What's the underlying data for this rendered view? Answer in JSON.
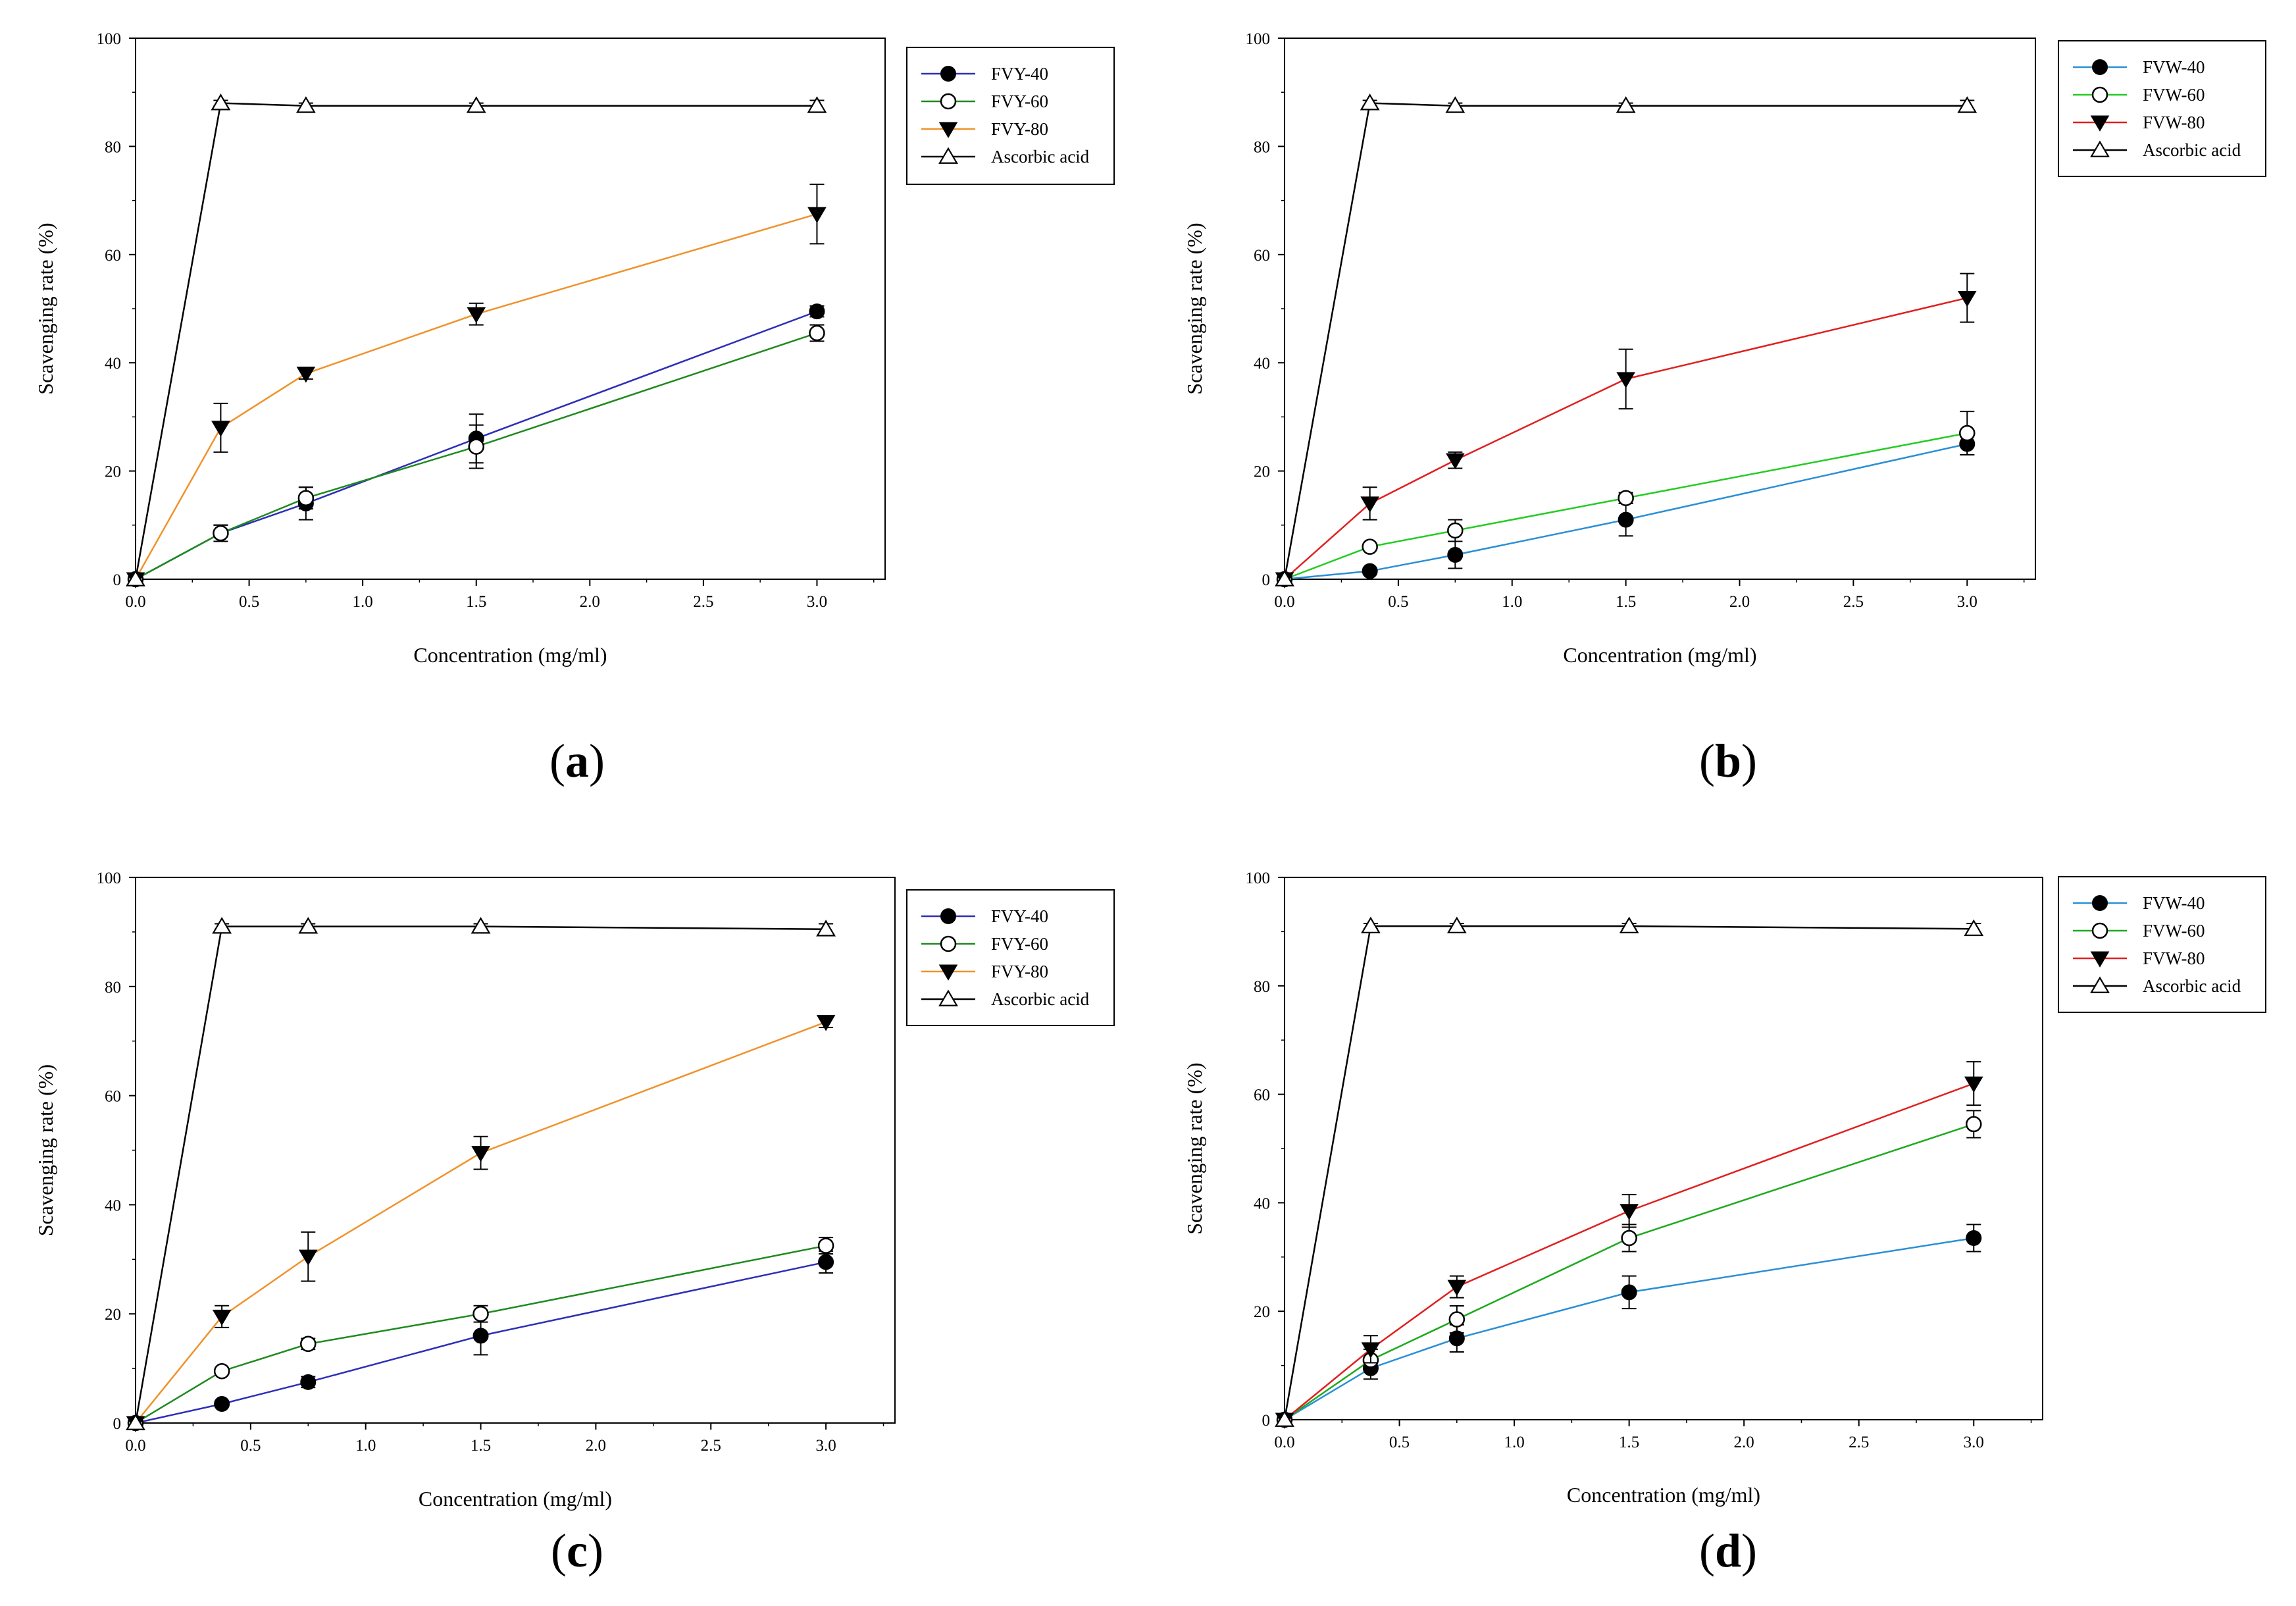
{
  "figure": {
    "panels": [
      "a",
      "b",
      "c",
      "d"
    ]
  },
  "chart_data": [
    {
      "id": "a",
      "panel_label": "(a)",
      "type": "line",
      "xlabel": "Concentration (mg/ml)",
      "ylabel": "Scavenging rate (%)",
      "xlim": [
        0,
        3.3
      ],
      "ylim": [
        0,
        100
      ],
      "xticks": [
        "0.0",
        "0.5",
        "1.0",
        "1.5",
        "2.0",
        "2.5",
        "3.0"
      ],
      "yticks": [
        "0",
        "20",
        "40",
        "60",
        "80",
        "100"
      ],
      "legend_position": "top-right",
      "x": [
        0,
        0.375,
        0.75,
        1.5,
        3.0
      ],
      "series": [
        {
          "name": "FVY-40",
          "color": "#2e2eb8",
          "marker": "filled-circle",
          "values": [
            0,
            8.5,
            14,
            26,
            49.5
          ],
          "errors": [
            0,
            1.5,
            3,
            4.5,
            1
          ]
        },
        {
          "name": "FVY-60",
          "color": "#1e8a1e",
          "marker": "open-circle",
          "values": [
            0,
            8.5,
            15,
            24.5,
            45.5
          ],
          "errors": [
            0,
            1.5,
            2,
            4,
            1.5
          ]
        },
        {
          "name": "FVY-80",
          "color": "#f0922b",
          "marker": "filled-triangle-down",
          "values": [
            0,
            28,
            38,
            49,
            67.5
          ],
          "errors": [
            0,
            4.5,
            1,
            2,
            5.5
          ]
        },
        {
          "name": "Ascorbic acid",
          "color": "#000000",
          "marker": "open-triangle-up",
          "values": [
            0,
            88,
            87.5,
            87.5,
            87.5
          ],
          "errors": [
            0,
            0.5,
            0.5,
            0.5,
            1
          ]
        }
      ]
    },
    {
      "id": "b",
      "panel_label": "(b)",
      "type": "line",
      "xlabel": "Concentration (mg/ml)",
      "ylabel": "Scavenging rate (%)",
      "xlim": [
        0,
        3.3
      ],
      "ylim": [
        0,
        100
      ],
      "xticks": [
        "0.0",
        "0.5",
        "1.0",
        "1.5",
        "2.0",
        "2.5",
        "3.0"
      ],
      "yticks": [
        "0",
        "20",
        "40",
        "60",
        "80",
        "100"
      ],
      "legend_position": "top-right",
      "x": [
        0,
        0.375,
        0.75,
        1.5,
        3.0
      ],
      "series": [
        {
          "name": "FVW-40",
          "color": "#2a8fd6",
          "marker": "filled-circle",
          "values": [
            0,
            1.5,
            4.5,
            11,
            25
          ],
          "errors": [
            0,
            0.5,
            2.5,
            3,
            2
          ]
        },
        {
          "name": "FVW-60",
          "color": "#22cc22",
          "marker": "open-circle",
          "values": [
            0,
            6,
            9,
            15,
            27
          ],
          "errors": [
            0,
            0.5,
            2,
            1,
            4
          ]
        },
        {
          "name": "FVW-80",
          "color": "#e02020",
          "marker": "filled-triangle-down",
          "values": [
            0,
            14,
            22,
            37,
            52
          ],
          "errors": [
            0,
            3,
            1.5,
            5.5,
            4.5
          ]
        },
        {
          "name": "Ascorbic acid",
          "color": "#000000",
          "marker": "open-triangle-up",
          "values": [
            0,
            88,
            87.5,
            87.5,
            87.5
          ],
          "errors": [
            0,
            0.5,
            0.5,
            0.5,
            1
          ]
        }
      ]
    },
    {
      "id": "c",
      "panel_label": "(c)",
      "type": "line",
      "xlabel": "Concentration (mg/ml)",
      "ylabel": "Scavenging rate (%)",
      "xlim": [
        0,
        3.3
      ],
      "ylim": [
        0,
        100
      ],
      "xticks": [
        "0.0",
        "0.5",
        "1.0",
        "1.5",
        "2.0",
        "2.5",
        "3.0"
      ],
      "yticks": [
        "0",
        "20",
        "40",
        "60",
        "80",
        "100"
      ],
      "legend_position": "top-right",
      "x": [
        0,
        0.375,
        0.75,
        1.5,
        3.0
      ],
      "series": [
        {
          "name": "FVY-40",
          "color": "#2e2eb8",
          "marker": "filled-circle",
          "values": [
            0,
            3.5,
            7.5,
            16,
            29.5
          ],
          "errors": [
            0,
            0.5,
            1,
            3.5,
            2
          ]
        },
        {
          "name": "FVY-60",
          "color": "#1e8a1e",
          "marker": "open-circle",
          "values": [
            0,
            9.5,
            14.5,
            20,
            32.5
          ],
          "errors": [
            0,
            0.5,
            1,
            1.5,
            1.5
          ]
        },
        {
          "name": "FVY-80",
          "color": "#f0922b",
          "marker": "filled-triangle-down",
          "values": [
            0,
            19.5,
            30.5,
            49.5,
            73.5
          ],
          "errors": [
            0,
            2,
            4.5,
            3,
            1
          ]
        },
        {
          "name": "Ascorbic acid",
          "color": "#000000",
          "marker": "open-triangle-up",
          "values": [
            0,
            91,
            91,
            91,
            90.5
          ],
          "errors": [
            0,
            0.5,
            0.5,
            0.5,
            1
          ]
        }
      ]
    },
    {
      "id": "d",
      "panel_label": "(d)",
      "type": "line",
      "xlabel": "Concentration (mg/ml)",
      "ylabel": "Scavenging rate (%)",
      "xlim": [
        0,
        3.3
      ],
      "ylim": [
        0,
        100
      ],
      "xticks": [
        "0.0",
        "0.5",
        "1.0",
        "1.5",
        "2.0",
        "2.5",
        "3.0"
      ],
      "yticks": [
        "0",
        "20",
        "40",
        "60",
        "80",
        "100"
      ],
      "legend_position": "top-right",
      "x": [
        0,
        0.375,
        0.75,
        1.5,
        3.0
      ],
      "series": [
        {
          "name": "FVW-40",
          "color": "#2a8fd6",
          "marker": "filled-circle",
          "values": [
            0,
            9.5,
            15,
            23.5,
            33.5
          ],
          "errors": [
            0,
            2,
            2.5,
            3,
            2.5
          ]
        },
        {
          "name": "FVW-60",
          "color": "#1eaa1e",
          "marker": "open-circle",
          "values": [
            0,
            11,
            18.5,
            33.5,
            54.5
          ],
          "errors": [
            0,
            2,
            2.5,
            2.5,
            2.5
          ]
        },
        {
          "name": "FVW-80",
          "color": "#e02020",
          "marker": "filled-triangle-down",
          "values": [
            0,
            13,
            24.5,
            38.5,
            62
          ],
          "errors": [
            0,
            2.5,
            2,
            3,
            4
          ]
        },
        {
          "name": "Ascorbic acid",
          "color": "#000000",
          "marker": "open-triangle-up",
          "values": [
            0,
            91,
            91,
            91,
            90.5
          ],
          "errors": [
            0,
            0.5,
            0.5,
            0.5,
            1
          ]
        }
      ]
    }
  ]
}
